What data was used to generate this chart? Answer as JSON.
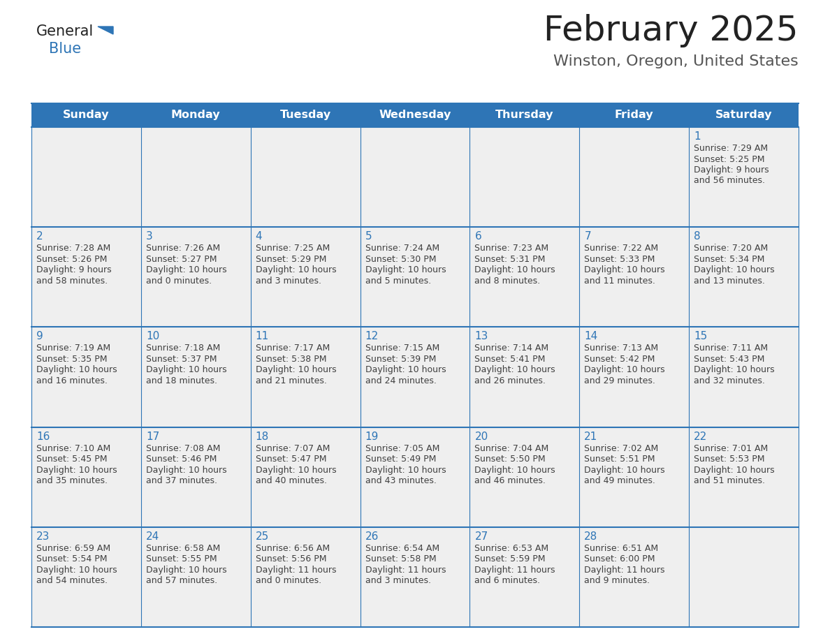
{
  "title": "February 2025",
  "subtitle": "Winston, Oregon, United States",
  "header_bg": "#2E75B6",
  "header_text_color": "#FFFFFF",
  "cell_bg": "#EFEFEF",
  "border_color": "#2E75B6",
  "day_number_color": "#2E75B6",
  "cell_text_color": "#404040",
  "days_of_week": [
    "Sunday",
    "Monday",
    "Tuesday",
    "Wednesday",
    "Thursday",
    "Friday",
    "Saturday"
  ],
  "logo_general_color": "#222222",
  "logo_blue_color": "#2E75B6",
  "logo_triangle_color": "#2E75B6",
  "calendar_data": [
    [
      null,
      null,
      null,
      null,
      null,
      null,
      {
        "day": "1",
        "lines": [
          "Sunrise: 7:29 AM",
          "Sunset: 5:25 PM",
          "Daylight: 9 hours",
          "and 56 minutes."
        ]
      }
    ],
    [
      {
        "day": "2",
        "lines": [
          "Sunrise: 7:28 AM",
          "Sunset: 5:26 PM",
          "Daylight: 9 hours",
          "and 58 minutes."
        ]
      },
      {
        "day": "3",
        "lines": [
          "Sunrise: 7:26 AM",
          "Sunset: 5:27 PM",
          "Daylight: 10 hours",
          "and 0 minutes."
        ]
      },
      {
        "day": "4",
        "lines": [
          "Sunrise: 7:25 AM",
          "Sunset: 5:29 PM",
          "Daylight: 10 hours",
          "and 3 minutes."
        ]
      },
      {
        "day": "5",
        "lines": [
          "Sunrise: 7:24 AM",
          "Sunset: 5:30 PM",
          "Daylight: 10 hours",
          "and 5 minutes."
        ]
      },
      {
        "day": "6",
        "lines": [
          "Sunrise: 7:23 AM",
          "Sunset: 5:31 PM",
          "Daylight: 10 hours",
          "and 8 minutes."
        ]
      },
      {
        "day": "7",
        "lines": [
          "Sunrise: 7:22 AM",
          "Sunset: 5:33 PM",
          "Daylight: 10 hours",
          "and 11 minutes."
        ]
      },
      {
        "day": "8",
        "lines": [
          "Sunrise: 7:20 AM",
          "Sunset: 5:34 PM",
          "Daylight: 10 hours",
          "and 13 minutes."
        ]
      }
    ],
    [
      {
        "day": "9",
        "lines": [
          "Sunrise: 7:19 AM",
          "Sunset: 5:35 PM",
          "Daylight: 10 hours",
          "and 16 minutes."
        ]
      },
      {
        "day": "10",
        "lines": [
          "Sunrise: 7:18 AM",
          "Sunset: 5:37 PM",
          "Daylight: 10 hours",
          "and 18 minutes."
        ]
      },
      {
        "day": "11",
        "lines": [
          "Sunrise: 7:17 AM",
          "Sunset: 5:38 PM",
          "Daylight: 10 hours",
          "and 21 minutes."
        ]
      },
      {
        "day": "12",
        "lines": [
          "Sunrise: 7:15 AM",
          "Sunset: 5:39 PM",
          "Daylight: 10 hours",
          "and 24 minutes."
        ]
      },
      {
        "day": "13",
        "lines": [
          "Sunrise: 7:14 AM",
          "Sunset: 5:41 PM",
          "Daylight: 10 hours",
          "and 26 minutes."
        ]
      },
      {
        "day": "14",
        "lines": [
          "Sunrise: 7:13 AM",
          "Sunset: 5:42 PM",
          "Daylight: 10 hours",
          "and 29 minutes."
        ]
      },
      {
        "day": "15",
        "lines": [
          "Sunrise: 7:11 AM",
          "Sunset: 5:43 PM",
          "Daylight: 10 hours",
          "and 32 minutes."
        ]
      }
    ],
    [
      {
        "day": "16",
        "lines": [
          "Sunrise: 7:10 AM",
          "Sunset: 5:45 PM",
          "Daylight: 10 hours",
          "and 35 minutes."
        ]
      },
      {
        "day": "17",
        "lines": [
          "Sunrise: 7:08 AM",
          "Sunset: 5:46 PM",
          "Daylight: 10 hours",
          "and 37 minutes."
        ]
      },
      {
        "day": "18",
        "lines": [
          "Sunrise: 7:07 AM",
          "Sunset: 5:47 PM",
          "Daylight: 10 hours",
          "and 40 minutes."
        ]
      },
      {
        "day": "19",
        "lines": [
          "Sunrise: 7:05 AM",
          "Sunset: 5:49 PM",
          "Daylight: 10 hours",
          "and 43 minutes."
        ]
      },
      {
        "day": "20",
        "lines": [
          "Sunrise: 7:04 AM",
          "Sunset: 5:50 PM",
          "Daylight: 10 hours",
          "and 46 minutes."
        ]
      },
      {
        "day": "21",
        "lines": [
          "Sunrise: 7:02 AM",
          "Sunset: 5:51 PM",
          "Daylight: 10 hours",
          "and 49 minutes."
        ]
      },
      {
        "day": "22",
        "lines": [
          "Sunrise: 7:01 AM",
          "Sunset: 5:53 PM",
          "Daylight: 10 hours",
          "and 51 minutes."
        ]
      }
    ],
    [
      {
        "day": "23",
        "lines": [
          "Sunrise: 6:59 AM",
          "Sunset: 5:54 PM",
          "Daylight: 10 hours",
          "and 54 minutes."
        ]
      },
      {
        "day": "24",
        "lines": [
          "Sunrise: 6:58 AM",
          "Sunset: 5:55 PM",
          "Daylight: 10 hours",
          "and 57 minutes."
        ]
      },
      {
        "day": "25",
        "lines": [
          "Sunrise: 6:56 AM",
          "Sunset: 5:56 PM",
          "Daylight: 11 hours",
          "and 0 minutes."
        ]
      },
      {
        "day": "26",
        "lines": [
          "Sunrise: 6:54 AM",
          "Sunset: 5:58 PM",
          "Daylight: 11 hours",
          "and 3 minutes."
        ]
      },
      {
        "day": "27",
        "lines": [
          "Sunrise: 6:53 AM",
          "Sunset: 5:59 PM",
          "Daylight: 11 hours",
          "and 6 minutes."
        ]
      },
      {
        "day": "28",
        "lines": [
          "Sunrise: 6:51 AM",
          "Sunset: 6:00 PM",
          "Daylight: 11 hours",
          "and 9 minutes."
        ]
      },
      null
    ]
  ]
}
